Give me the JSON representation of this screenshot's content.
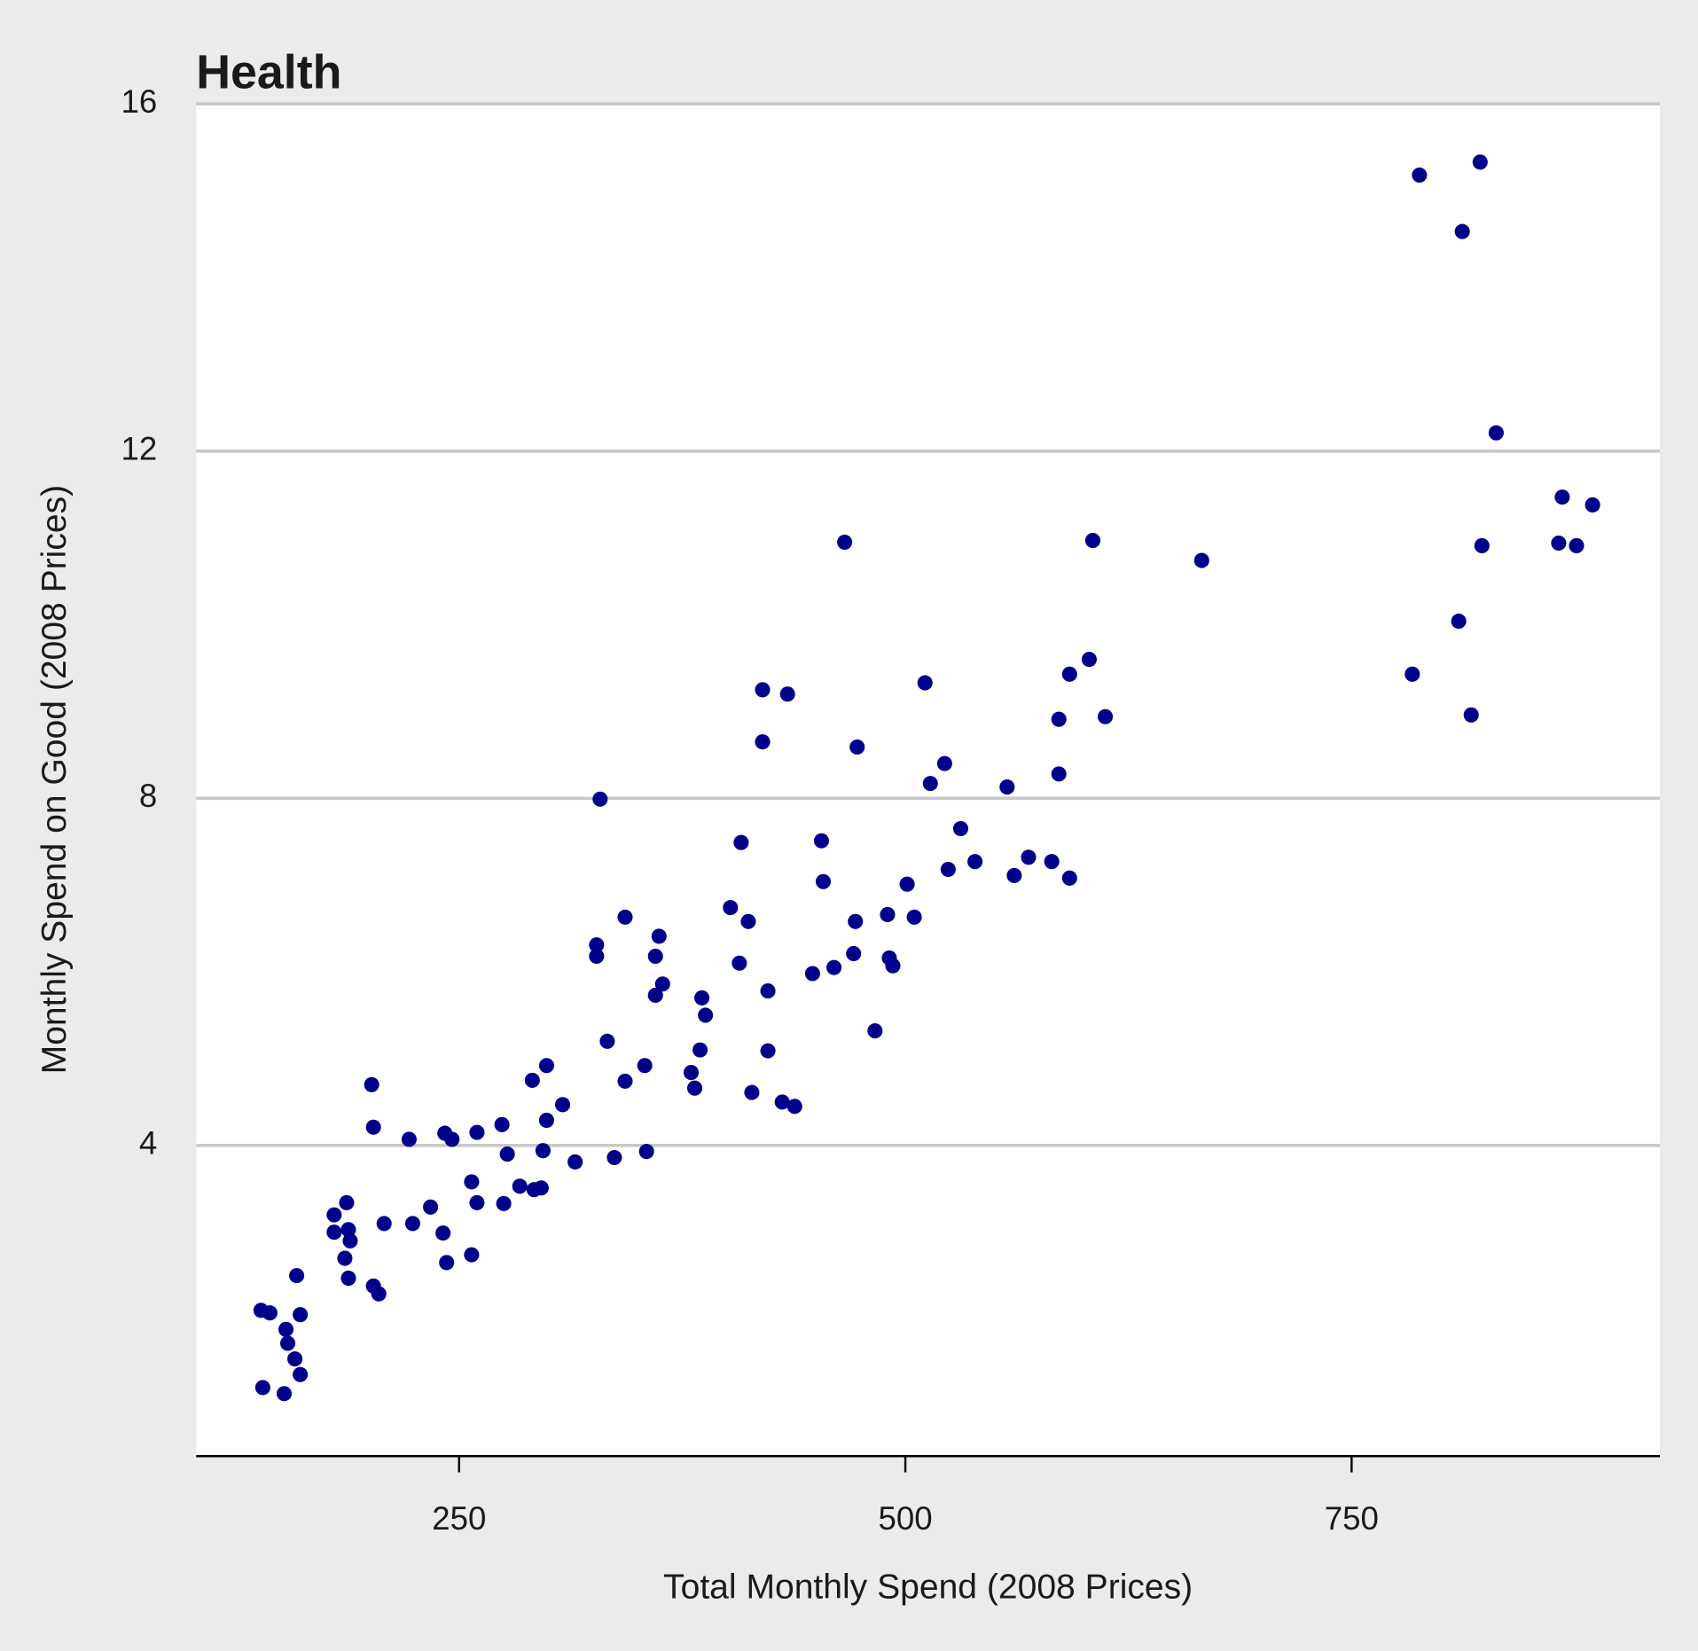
{
  "chart_data": {
    "type": "scatter",
    "title": "Health",
    "x_label": "Total Monthly Spend (2008 Prices)",
    "y_label": "Monthly Spend on Good (2008 Prices)",
    "color": "#00008b",
    "xlim": [
      102.7,
      922.7
    ],
    "xticks": [
      250,
      500,
      750
    ],
    "ylim": [
      0.42,
      16
    ],
    "yticks": [
      4,
      8,
      12,
      16
    ],
    "grid": true,
    "x": [
      788,
      822,
      812,
      831,
      868,
      885,
      823,
      866,
      876,
      810,
      784,
      817,
      666,
      605,
      466,
      603,
      592,
      586,
      612,
      586,
      511,
      420,
      434,
      420,
      473,
      522,
      514,
      557,
      329,
      408,
      453,
      531,
      569,
      582,
      539,
      524,
      561,
      592,
      501,
      454,
      402,
      412,
      343,
      490,
      505,
      472,
      327,
      327,
      362,
      360,
      471,
      491,
      493,
      407,
      460,
      448,
      364,
      360,
      386,
      423,
      388,
      483,
      333,
      385,
      423,
      299,
      354,
      380,
      291,
      343,
      382,
      414,
      201,
      431,
      438,
      308,
      299,
      274,
      202,
      260,
      242,
      246,
      222,
      297,
      355,
      277,
      337,
      315,
      257,
      284,
      296,
      292,
      260,
      275,
      187,
      234,
      180,
      208,
      224,
      188,
      180,
      241,
      189,
      186,
      257,
      243,
      159,
      188,
      202,
      205,
      139,
      144,
      161,
      153,
      154,
      158,
      161,
      140,
      152
    ],
    "values": [
      15.18,
      15.33,
      14.53,
      12.21,
      11.47,
      11.38,
      10.91,
      10.94,
      10.91,
      10.04,
      9.43,
      8.96,
      10.74,
      10.97,
      10.95,
      9.6,
      9.43,
      8.91,
      8.94,
      8.28,
      9.33,
      9.25,
      9.2,
      8.65,
      8.59,
      8.4,
      8.17,
      8.13,
      7.99,
      7.49,
      7.51,
      7.65,
      7.32,
      7.27,
      7.27,
      7.18,
      7.11,
      7.08,
      7.01,
      7.04,
      6.74,
      6.58,
      6.63,
      6.66,
      6.63,
      6.58,
      6.31,
      6.18,
      6.41,
      6.18,
      6.21,
      6.16,
      6.07,
      6.1,
      6.05,
      5.98,
      5.86,
      5.73,
      5.7,
      5.78,
      5.5,
      5.32,
      5.2,
      5.1,
      5.09,
      4.92,
      4.92,
      4.84,
      4.75,
      4.74,
      4.66,
      4.61,
      4.7,
      4.5,
      4.45,
      4.47,
      4.29,
      4.24,
      4.21,
      4.15,
      4.14,
      4.07,
      4.07,
      3.94,
      3.93,
      3.9,
      3.86,
      3.81,
      3.58,
      3.53,
      3.51,
      3.49,
      3.34,
      3.33,
      3.34,
      3.29,
      3.2,
      3.1,
      3.1,
      3.03,
      3.0,
      2.99,
      2.9,
      2.7,
      2.74,
      2.65,
      2.5,
      2.47,
      2.38,
      2.29,
      2.1,
      2.07,
      2.05,
      1.88,
      1.72,
      1.54,
      1.36,
      1.21,
      1.14
    ]
  }
}
